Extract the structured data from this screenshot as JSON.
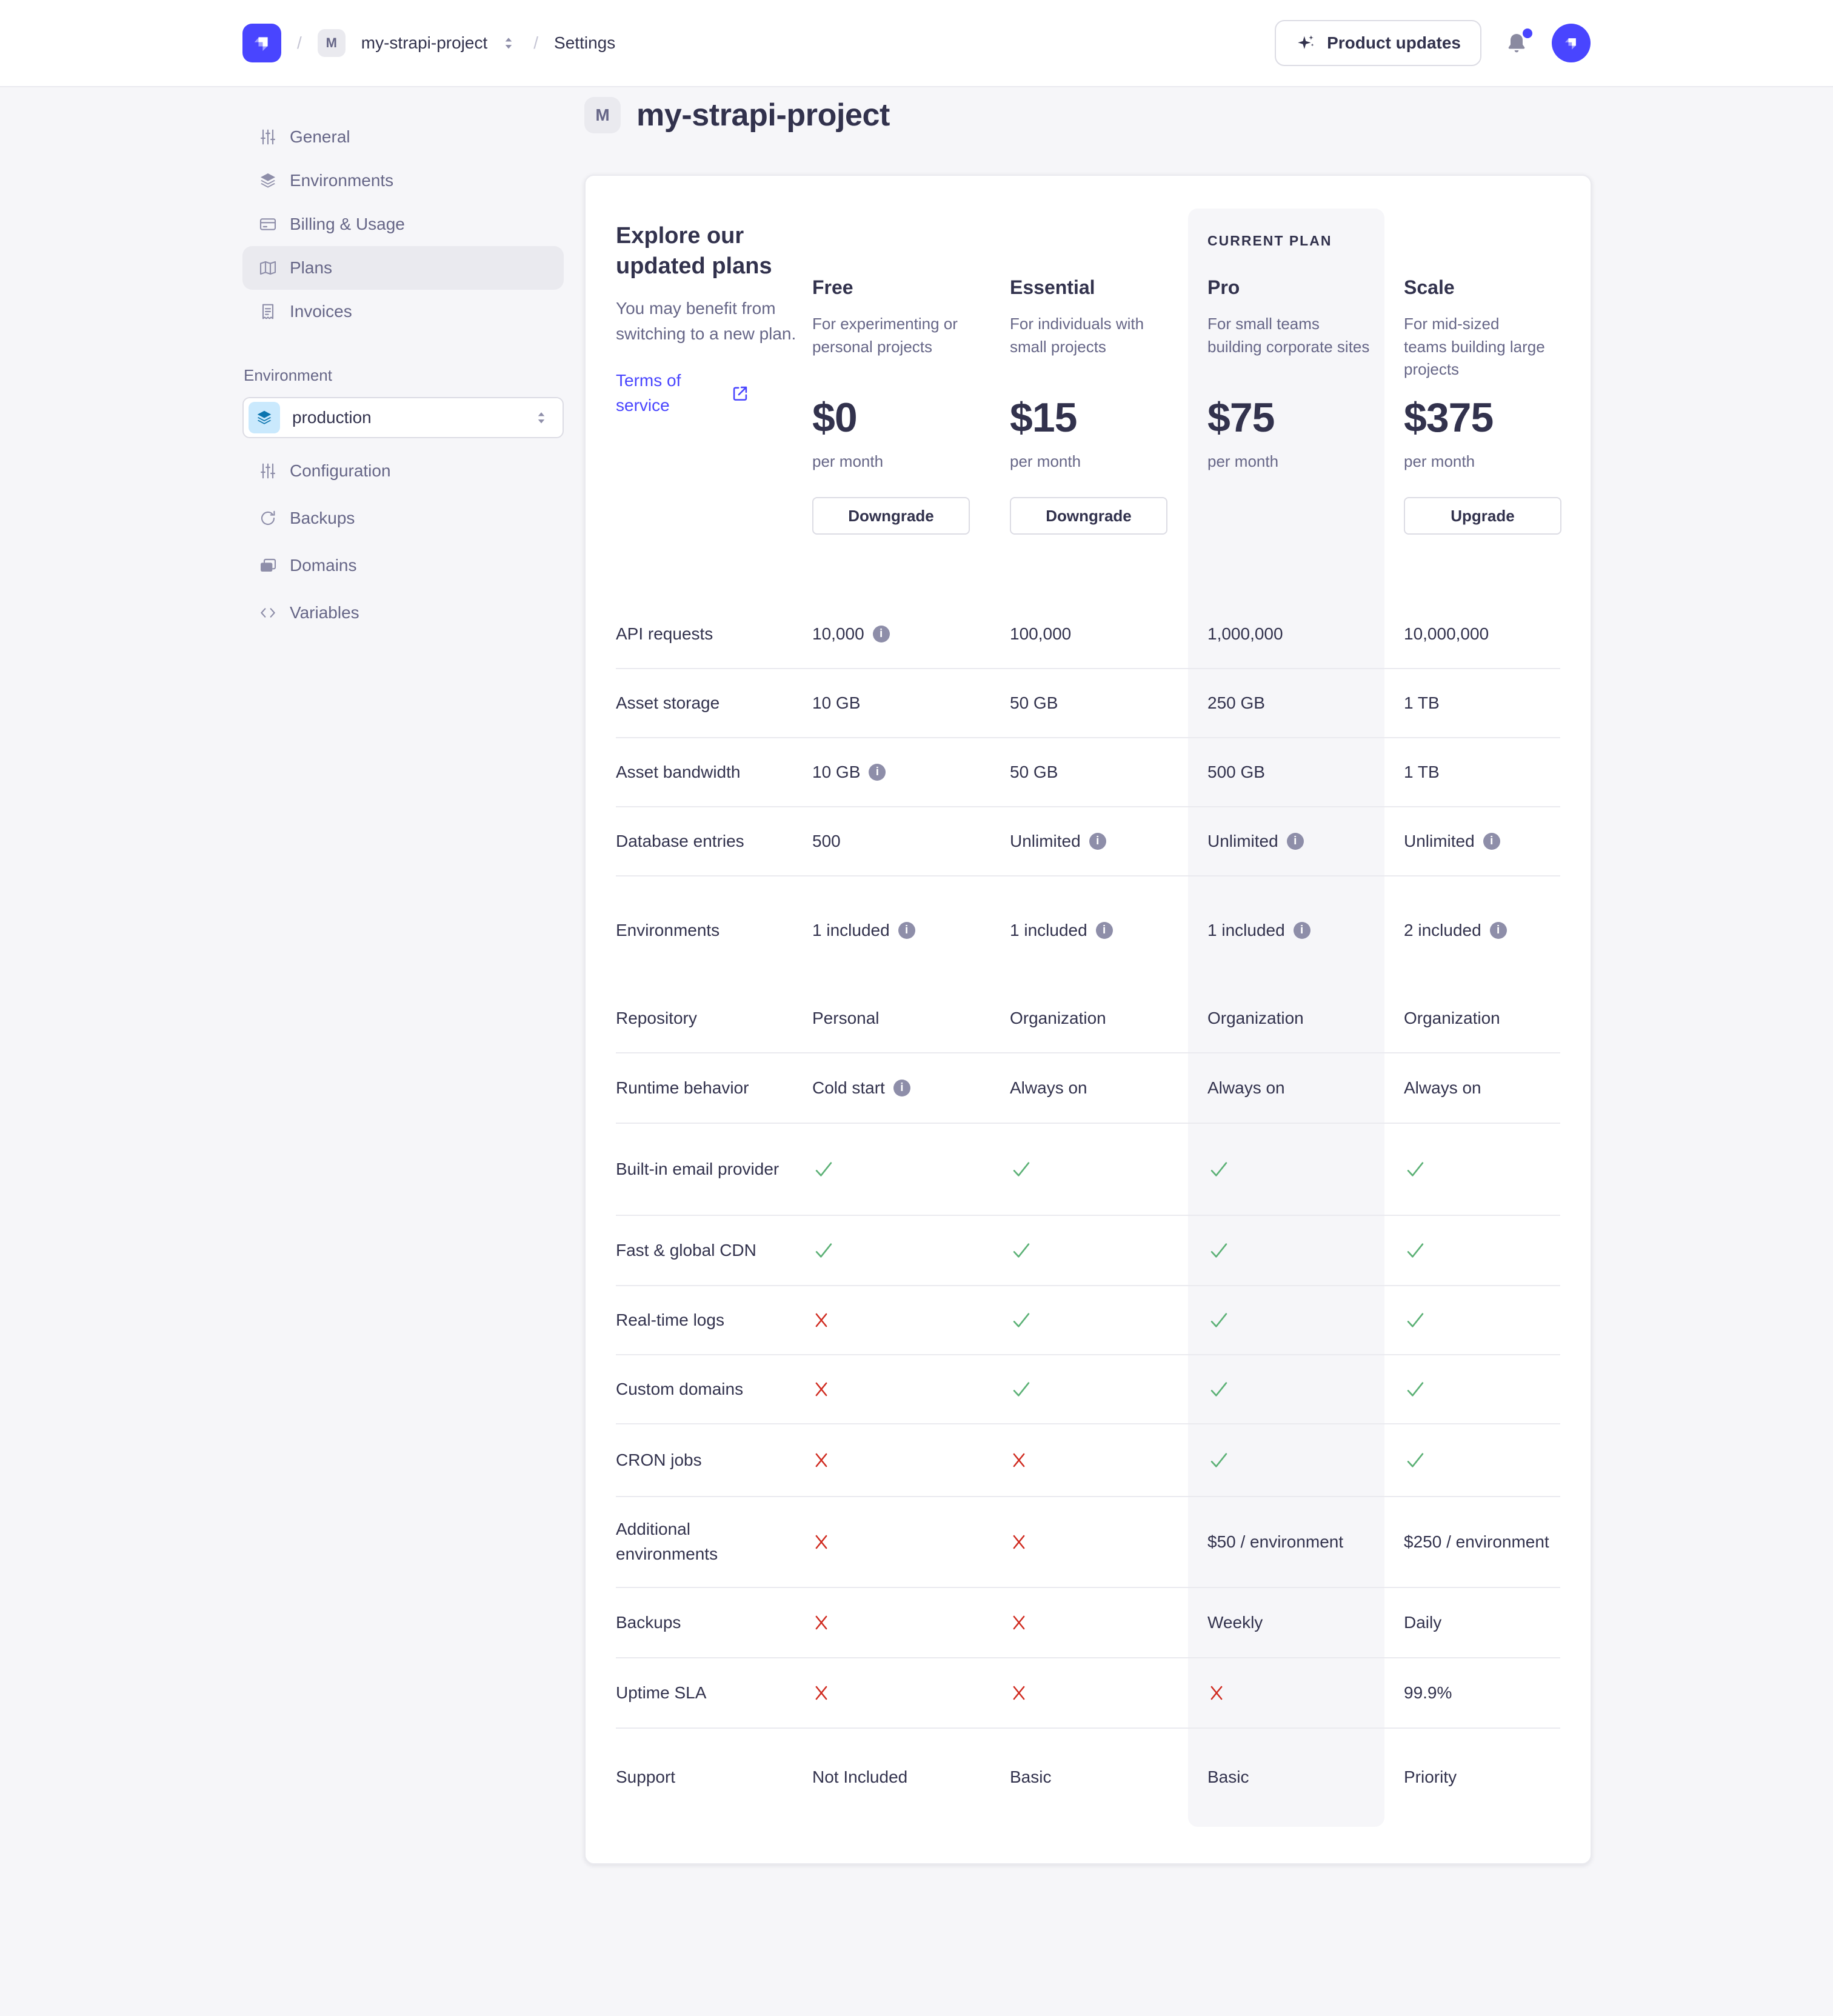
{
  "topbar": {
    "separator": "/",
    "project_badge": "M",
    "project_name": "my-strapi-project",
    "section": "Settings",
    "product_updates_label": "Product updates"
  },
  "sidebar": {
    "project_nav": [
      {
        "label": "General",
        "icon": "sliders-icon",
        "active": false
      },
      {
        "label": "Environments",
        "icon": "layers-icon",
        "active": false
      },
      {
        "label": "Billing & Usage",
        "icon": "credit-card-icon",
        "active": false
      },
      {
        "label": "Plans",
        "icon": "map-icon",
        "active": true
      },
      {
        "label": "Invoices",
        "icon": "receipt-icon",
        "active": false
      }
    ],
    "environment_label": "Environment",
    "environment_select": {
      "value": "production",
      "icon": "layers-icon"
    },
    "environment_nav": [
      {
        "label": "Configuration",
        "icon": "sliders-icon"
      },
      {
        "label": "Backups",
        "icon": "refresh-icon"
      },
      {
        "label": "Domains",
        "icon": "wallet-icon"
      },
      {
        "label": "Variables",
        "icon": "code-icon"
      }
    ]
  },
  "page": {
    "badge": "M",
    "title": "my-strapi-project"
  },
  "plans": {
    "intro": {
      "heading": "Explore our updated plans",
      "body": "You may benefit from switching to a new plan.",
      "link_label": "Terms of service"
    },
    "current_plan_label": "CURRENT PLAN",
    "columns": [
      {
        "name": "Free",
        "description": "For experimenting or personal projects",
        "price": "$0",
        "period": "per month",
        "button": "Downgrade",
        "current": false
      },
      {
        "name": "Essential",
        "description": "For individuals with small projects",
        "price": "$15",
        "period": "per month",
        "button": "Downgrade",
        "current": false
      },
      {
        "name": "Pro",
        "description": "For small teams building corporate sites",
        "price": "$75",
        "period": "per month",
        "button": null,
        "current": true
      },
      {
        "name": "Scale",
        "description": "For mid-sized teams building large projects",
        "price": "$375",
        "period": "per month",
        "button": "Upgrade",
        "current": false
      }
    ],
    "rows": [
      {
        "label": "API requests",
        "cells": [
          {
            "type": "text",
            "value": "10,000",
            "info": true
          },
          {
            "type": "text",
            "value": "100,000"
          },
          {
            "type": "text",
            "value": "1,000,000"
          },
          {
            "type": "text",
            "value": "10,000,000"
          }
        ]
      },
      {
        "label": "Asset storage",
        "cells": [
          {
            "type": "text",
            "value": "10 GB"
          },
          {
            "type": "text",
            "value": "50 GB"
          },
          {
            "type": "text",
            "value": "250 GB"
          },
          {
            "type": "text",
            "value": "1 TB"
          }
        ]
      },
      {
        "label": "Asset bandwidth",
        "cells": [
          {
            "type": "text",
            "value": "10 GB",
            "info": true
          },
          {
            "type": "text",
            "value": "50 GB"
          },
          {
            "type": "text",
            "value": "500 GB"
          },
          {
            "type": "text",
            "value": "1 TB"
          }
        ]
      },
      {
        "label": "Database entries",
        "cells": [
          {
            "type": "text",
            "value": "500"
          },
          {
            "type": "text",
            "value": "Unlimited",
            "info": true
          },
          {
            "type": "text",
            "value": "Unlimited",
            "info": true
          },
          {
            "type": "text",
            "value": "Unlimited",
            "info": true
          }
        ]
      },
      {
        "label": "Environments",
        "cells": [
          {
            "type": "text",
            "value": "1 included",
            "info": true
          },
          {
            "type": "text",
            "value": "1 included",
            "info": true
          },
          {
            "type": "text",
            "value": "1 included",
            "info": true
          },
          {
            "type": "text",
            "value": "2 included",
            "info": true
          }
        ]
      },
      {
        "label": "Repository",
        "cells": [
          {
            "type": "text",
            "value": "Personal"
          },
          {
            "type": "text",
            "value": "Organization"
          },
          {
            "type": "text",
            "value": "Organization"
          },
          {
            "type": "text",
            "value": "Organization"
          }
        ]
      },
      {
        "label": "Runtime behavior",
        "cells": [
          {
            "type": "text",
            "value": "Cold start",
            "info": true
          },
          {
            "type": "text",
            "value": "Always on"
          },
          {
            "type": "text",
            "value": "Always on"
          },
          {
            "type": "text",
            "value": "Always on"
          }
        ]
      },
      {
        "label": "Built-in email provider",
        "cells": [
          {
            "type": "check"
          },
          {
            "type": "check"
          },
          {
            "type": "check"
          },
          {
            "type": "check"
          }
        ]
      },
      {
        "label": "Fast & global CDN",
        "cells": [
          {
            "type": "check"
          },
          {
            "type": "check"
          },
          {
            "type": "check"
          },
          {
            "type": "check"
          }
        ]
      },
      {
        "label": "Real-time logs",
        "cells": [
          {
            "type": "cross"
          },
          {
            "type": "check"
          },
          {
            "type": "check"
          },
          {
            "type": "check"
          }
        ]
      },
      {
        "label": "Custom domains",
        "cells": [
          {
            "type": "cross"
          },
          {
            "type": "check"
          },
          {
            "type": "check"
          },
          {
            "type": "check"
          }
        ]
      },
      {
        "label": "CRON jobs",
        "cells": [
          {
            "type": "cross"
          },
          {
            "type": "cross"
          },
          {
            "type": "check"
          },
          {
            "type": "check"
          }
        ]
      },
      {
        "label": "Additional environments",
        "cells": [
          {
            "type": "cross"
          },
          {
            "type": "cross"
          },
          {
            "type": "text",
            "value": "$50 / environment"
          },
          {
            "type": "text",
            "value": "$250 / environment"
          }
        ]
      },
      {
        "label": "Backups",
        "cells": [
          {
            "type": "cross"
          },
          {
            "type": "cross"
          },
          {
            "type": "text",
            "value": "Weekly"
          },
          {
            "type": "text",
            "value": "Daily"
          }
        ]
      },
      {
        "label": "Uptime SLA",
        "cells": [
          {
            "type": "cross"
          },
          {
            "type": "cross"
          },
          {
            "type": "cross"
          },
          {
            "type": "text",
            "value": "99.9%"
          }
        ]
      },
      {
        "label": "Support",
        "cells": [
          {
            "type": "text",
            "value": "Not Included"
          },
          {
            "type": "text",
            "value": "Basic"
          },
          {
            "type": "text",
            "value": "Basic"
          },
          {
            "type": "text",
            "value": "Priority"
          }
        ]
      }
    ]
  },
  "colors": {
    "primary": "#4945ff",
    "success": "#5cb176",
    "danger": "#d02b20",
    "highlight": "#f6f6f9",
    "env_icon_bg": "#cae9fd",
    "env_icon": "#0c75af"
  }
}
